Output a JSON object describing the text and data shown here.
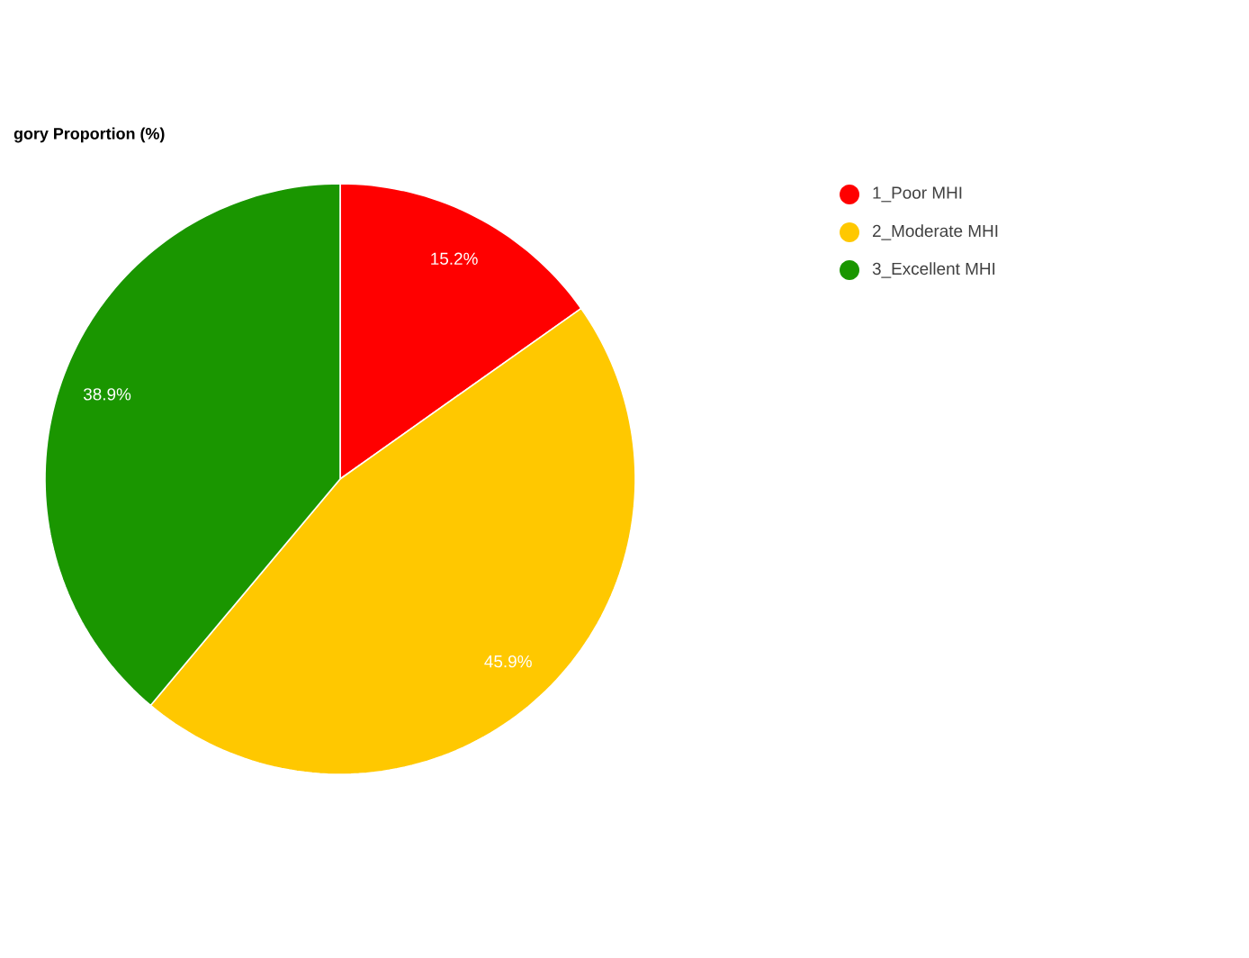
{
  "chart_data": {
    "type": "pie",
    "title": "gory Proportion (%)",
    "categories": [
      "1_Poor MHI",
      "2_Moderate MHI",
      "3_Excellent MHI"
    ],
    "values": [
      15.2,
      45.9,
      38.9
    ],
    "colors": [
      "#ff0000",
      "#ffc800",
      "#1a9600"
    ],
    "value_labels": [
      "15.2%",
      "45.9%",
      "38.9%"
    ],
    "legend": "top right"
  }
}
